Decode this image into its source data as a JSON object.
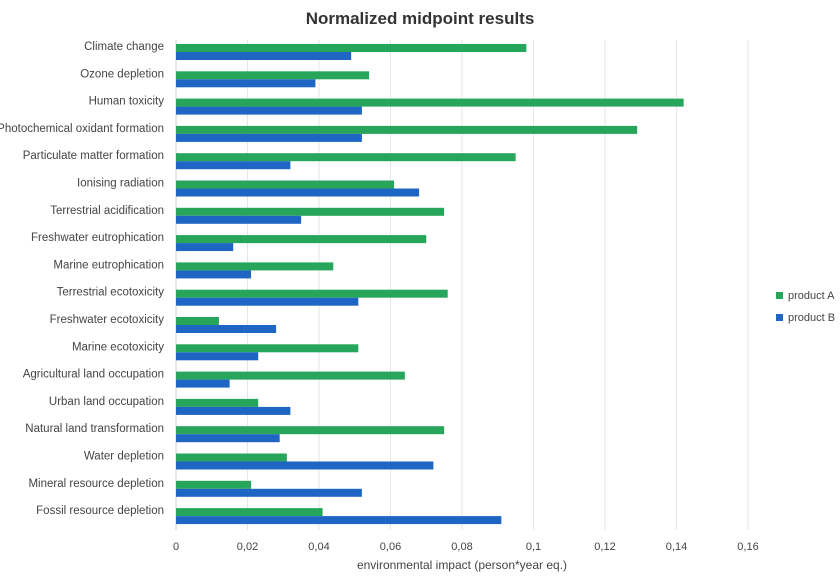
{
  "chart_data": {
    "type": "bar",
    "orientation": "horizontal",
    "title": "Normalized midpoint results",
    "xlabel": "environmental impact (person*year eq.)",
    "ylabel": "",
    "xlim": [
      0,
      0.16
    ],
    "xticks": [
      0,
      0.02,
      0.04,
      0.06,
      0.08,
      0.1,
      0.12,
      0.14,
      0.16
    ],
    "xtick_labels": [
      "0",
      "0,02",
      "0,04",
      "0,06",
      "0,08",
      "0,1",
      "0,12",
      "0,14",
      "0,16"
    ],
    "grid": true,
    "legend_position": "right",
    "categories": [
      "Climate change",
      "Ozone depletion",
      "Human toxicity",
      "Photochemical oxidant formation",
      "Particulate matter formation",
      "Ionising radiation",
      "Terrestrial acidification",
      "Freshwater eutrophication",
      "Marine eutrophication",
      "Terrestrial ecotoxicity",
      "Freshwater ecotoxicity",
      "Marine ecotoxicity",
      "Agricultural land occupation",
      "Urban land occupation",
      "Natural land transformation",
      "Water depletion",
      "Mineral resource depletion",
      "Fossil resource depletion"
    ],
    "series": [
      {
        "name": "product A",
        "color": "#27a55a",
        "values": [
          0.098,
          0.054,
          0.142,
          0.129,
          0.095,
          0.061,
          0.075,
          0.07,
          0.044,
          0.076,
          0.012,
          0.051,
          0.064,
          0.023,
          0.075,
          0.031,
          0.021,
          0.041
        ]
      },
      {
        "name": "product B",
        "color": "#1f66c4",
        "values": [
          0.049,
          0.039,
          0.052,
          0.052,
          0.032,
          0.068,
          0.035,
          0.016,
          0.021,
          0.051,
          0.028,
          0.023,
          0.015,
          0.032,
          0.029,
          0.072,
          0.052,
          0.091
        ]
      }
    ]
  }
}
